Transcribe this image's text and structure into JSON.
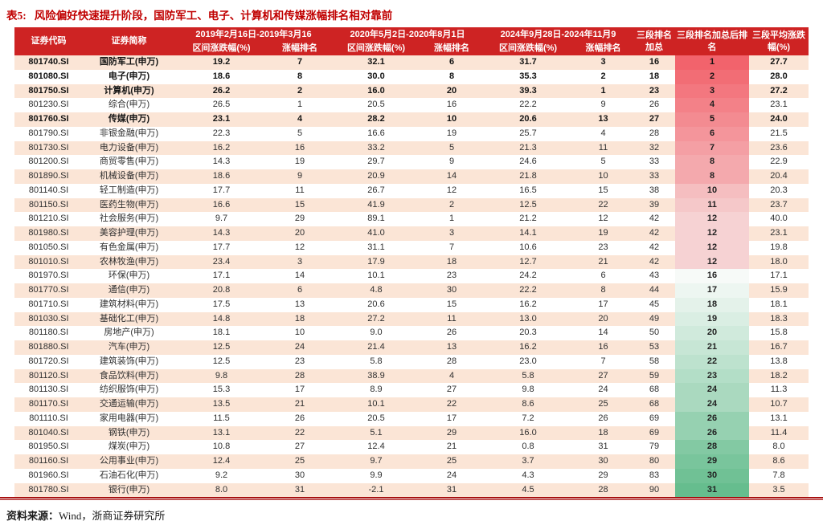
{
  "title": {
    "label": "表5:",
    "text": "风险偏好快速提升阶段，国防军工、电子、计算机和传媒涨幅排名相对靠前"
  },
  "source": {
    "label": "资料来源：",
    "text": "Wind，浙商证券研究所"
  },
  "colors": {
    "header_bg": "#ce2323",
    "stripe": "#fbe5d6",
    "title_red": "#c00000",
    "rule_red": "#a81111",
    "text": "#303030",
    "rank_scale": {
      "low": "#f2636c",
      "mid": "#f7faf8",
      "high": "#66bd8e"
    }
  },
  "table": {
    "header": {
      "code": "证券代码",
      "name": "证券简称",
      "periods": [
        {
          "range": "2019年2月16日-2019年3月16",
          "chg": "区间涨跌幅(%)",
          "rank": "涨幅排名"
        },
        {
          "range": "2020年5月2日-2020年8月1日",
          "chg": "区间涨跌幅(%)",
          "rank": "涨幅排名"
        },
        {
          "range": "2024年9月28日-2024年11月9",
          "chg": "区间涨跌幅(%)",
          "rank": "涨幅排名"
        }
      ],
      "rank_sum": "三段排名加总",
      "rank_after": "三段排名加总后排名",
      "avg": "三段平均涨跌幅(%)"
    },
    "rows": [
      {
        "code": "801740.SI",
        "name": "国防军工(申万)",
        "c1": "19.2",
        "r1": 7,
        "c2": "32.1",
        "r2": 6,
        "c3": "31.7",
        "r3": 3,
        "sum": 16,
        "rank": 1,
        "avg": "27.7",
        "bold": true
      },
      {
        "code": "801080.SI",
        "name": "电子(申万)",
        "c1": "18.6",
        "r1": 8,
        "c2": "30.0",
        "r2": 8,
        "c3": "35.3",
        "r3": 2,
        "sum": 18,
        "rank": 2,
        "avg": "28.0",
        "bold": true
      },
      {
        "code": "801750.SI",
        "name": "计算机(申万)",
        "c1": "26.2",
        "r1": 2,
        "c2": "16.0",
        "r2": 20,
        "c3": "39.3",
        "r3": 1,
        "sum": 23,
        "rank": 3,
        "avg": "27.2",
        "bold": true
      },
      {
        "code": "801230.SI",
        "name": "综合(申万)",
        "c1": "26.5",
        "r1": 1,
        "c2": "20.5",
        "r2": 16,
        "c3": "22.2",
        "r3": 9,
        "sum": 26,
        "rank": 4,
        "avg": "23.1",
        "bold": false
      },
      {
        "code": "801760.SI",
        "name": "传媒(申万)",
        "c1": "23.1",
        "r1": 4,
        "c2": "28.2",
        "r2": 10,
        "c3": "20.6",
        "r3": 13,
        "sum": 27,
        "rank": 5,
        "avg": "24.0",
        "bold": true
      },
      {
        "code": "801790.SI",
        "name": "非银金融(申万)",
        "c1": "22.3",
        "r1": 5,
        "c2": "16.6",
        "r2": 19,
        "c3": "25.7",
        "r3": 4,
        "sum": 28,
        "rank": 6,
        "avg": "21.5",
        "bold": false
      },
      {
        "code": "801730.SI",
        "name": "电力设备(申万)",
        "c1": "16.2",
        "r1": 16,
        "c2": "33.2",
        "r2": 5,
        "c3": "21.3",
        "r3": 11,
        "sum": 32,
        "rank": 7,
        "avg": "23.6",
        "bold": false
      },
      {
        "code": "801200.SI",
        "name": "商贸零售(申万)",
        "c1": "14.3",
        "r1": 19,
        "c2": "29.7",
        "r2": 9,
        "c3": "24.6",
        "r3": 5,
        "sum": 33,
        "rank": 8,
        "avg": "22.9",
        "bold": false
      },
      {
        "code": "801890.SI",
        "name": "机械设备(申万)",
        "c1": "18.6",
        "r1": 9,
        "c2": "20.9",
        "r2": 14,
        "c3": "21.8",
        "r3": 10,
        "sum": 33,
        "rank": 8,
        "avg": "20.4",
        "bold": false
      },
      {
        "code": "801140.SI",
        "name": "轻工制造(申万)",
        "c1": "17.7",
        "r1": 11,
        "c2": "26.7",
        "r2": 12,
        "c3": "16.5",
        "r3": 15,
        "sum": 38,
        "rank": 10,
        "avg": "20.3",
        "bold": false
      },
      {
        "code": "801150.SI",
        "name": "医药生物(申万)",
        "c1": "16.6",
        "r1": 15,
        "c2": "41.9",
        "r2": 2,
        "c3": "12.5",
        "r3": 22,
        "sum": 39,
        "rank": 11,
        "avg": "23.7",
        "bold": false
      },
      {
        "code": "801210.SI",
        "name": "社会服务(申万)",
        "c1": "9.7",
        "r1": 29,
        "c2": "89.1",
        "r2": 1,
        "c3": "21.2",
        "r3": 12,
        "sum": 42,
        "rank": 12,
        "avg": "40.0",
        "bold": false
      },
      {
        "code": "801980.SI",
        "name": "美容护理(申万)",
        "c1": "14.3",
        "r1": 20,
        "c2": "41.0",
        "r2": 3,
        "c3": "14.1",
        "r3": 19,
        "sum": 42,
        "rank": 12,
        "avg": "23.1",
        "bold": false
      },
      {
        "code": "801050.SI",
        "name": "有色金属(申万)",
        "c1": "17.7",
        "r1": 12,
        "c2": "31.1",
        "r2": 7,
        "c3": "10.6",
        "r3": 23,
        "sum": 42,
        "rank": 12,
        "avg": "19.8",
        "bold": false
      },
      {
        "code": "801010.SI",
        "name": "农林牧渔(申万)",
        "c1": "23.4",
        "r1": 3,
        "c2": "17.9",
        "r2": 18,
        "c3": "12.7",
        "r3": 21,
        "sum": 42,
        "rank": 12,
        "avg": "18.0",
        "bold": false
      },
      {
        "code": "801970.SI",
        "name": "环保(申万)",
        "c1": "17.1",
        "r1": 14,
        "c2": "10.1",
        "r2": 23,
        "c3": "24.2",
        "r3": 6,
        "sum": 43,
        "rank": 16,
        "avg": "17.1",
        "bold": false
      },
      {
        "code": "801770.SI",
        "name": "通信(申万)",
        "c1": "20.8",
        "r1": 6,
        "c2": "4.8",
        "r2": 30,
        "c3": "22.2",
        "r3": 8,
        "sum": 44,
        "rank": 17,
        "avg": "15.9",
        "bold": false
      },
      {
        "code": "801710.SI",
        "name": "建筑材料(申万)",
        "c1": "17.5",
        "r1": 13,
        "c2": "20.6",
        "r2": 15,
        "c3": "16.2",
        "r3": 17,
        "sum": 45,
        "rank": 18,
        "avg": "18.1",
        "bold": false
      },
      {
        "code": "801030.SI",
        "name": "基础化工(申万)",
        "c1": "14.8",
        "r1": 18,
        "c2": "27.2",
        "r2": 11,
        "c3": "13.0",
        "r3": 20,
        "sum": 49,
        "rank": 19,
        "avg": "18.3",
        "bold": false
      },
      {
        "code": "801180.SI",
        "name": "房地产(申万)",
        "c1": "18.1",
        "r1": 10,
        "c2": "9.0",
        "r2": 26,
        "c3": "20.3",
        "r3": 14,
        "sum": 50,
        "rank": 20,
        "avg": "15.8",
        "bold": false
      },
      {
        "code": "801880.SI",
        "name": "汽车(申万)",
        "c1": "12.5",
        "r1": 24,
        "c2": "21.4",
        "r2": 13,
        "c3": "16.2",
        "r3": 16,
        "sum": 53,
        "rank": 21,
        "avg": "16.7",
        "bold": false
      },
      {
        "code": "801720.SI",
        "name": "建筑装饰(申万)",
        "c1": "12.5",
        "r1": 23,
        "c2": "5.8",
        "r2": 28,
        "c3": "23.0",
        "r3": 7,
        "sum": 58,
        "rank": 22,
        "avg": "13.8",
        "bold": false
      },
      {
        "code": "801120.SI",
        "name": "食品饮料(申万)",
        "c1": "9.8",
        "r1": 28,
        "c2": "38.9",
        "r2": 4,
        "c3": "5.8",
        "r3": 27,
        "sum": 59,
        "rank": 23,
        "avg": "18.2",
        "bold": false
      },
      {
        "code": "801130.SI",
        "name": "纺织服饰(申万)",
        "c1": "15.3",
        "r1": 17,
        "c2": "8.9",
        "r2": 27,
        "c3": "9.8",
        "r3": 24,
        "sum": 68,
        "rank": 24,
        "avg": "11.3",
        "bold": false
      },
      {
        "code": "801170.SI",
        "name": "交通运输(申万)",
        "c1": "13.5",
        "r1": 21,
        "c2": "10.1",
        "r2": 22,
        "c3": "8.6",
        "r3": 25,
        "sum": 68,
        "rank": 24,
        "avg": "10.7",
        "bold": false
      },
      {
        "code": "801110.SI",
        "name": "家用电器(申万)",
        "c1": "11.5",
        "r1": 26,
        "c2": "20.5",
        "r2": 17,
        "c3": "7.2",
        "r3": 26,
        "sum": 69,
        "rank": 26,
        "avg": "13.1",
        "bold": false
      },
      {
        "code": "801040.SI",
        "name": "钢铁(申万)",
        "c1": "13.1",
        "r1": 22,
        "c2": "5.1",
        "r2": 29,
        "c3": "16.0",
        "r3": 18,
        "sum": 69,
        "rank": 26,
        "avg": "11.4",
        "bold": false
      },
      {
        "code": "801950.SI",
        "name": "煤炭(申万)",
        "c1": "10.8",
        "r1": 27,
        "c2": "12.4",
        "r2": 21,
        "c3": "0.8",
        "r3": 31,
        "sum": 79,
        "rank": 28,
        "avg": "8.0",
        "bold": false
      },
      {
        "code": "801160.SI",
        "name": "公用事业(申万)",
        "c1": "12.4",
        "r1": 25,
        "c2": "9.7",
        "r2": 25,
        "c3": "3.7",
        "r3": 30,
        "sum": 80,
        "rank": 29,
        "avg": "8.6",
        "bold": false
      },
      {
        "code": "801960.SI",
        "name": "石油石化(申万)",
        "c1": "9.2",
        "r1": 30,
        "c2": "9.9",
        "r2": 24,
        "c3": "4.3",
        "r3": 29,
        "sum": 83,
        "rank": 30,
        "avg": "7.8",
        "bold": false
      },
      {
        "code": "801780.SI",
        "name": "银行(申万)",
        "c1": "8.0",
        "r1": 31,
        "c2": "-2.1",
        "r2": 31,
        "c3": "4.5",
        "r3": 28,
        "sum": 90,
        "rank": 31,
        "avg": "3.5",
        "bold": false
      }
    ]
  }
}
